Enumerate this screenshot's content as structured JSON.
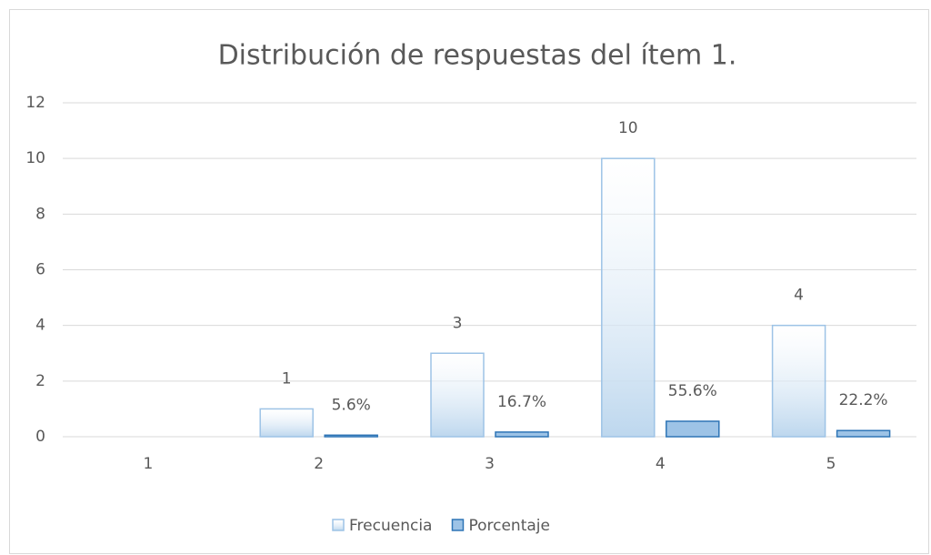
{
  "chart_data": {
    "type": "bar",
    "title": "Distribución de respuestas del ítem 1.",
    "categories": [
      "1",
      "2",
      "3",
      "4",
      "5"
    ],
    "series": [
      {
        "name": "Frecuencia",
        "color": "#bdd7ee",
        "values": [
          null,
          1,
          3,
          10,
          4
        ]
      },
      {
        "name": "Porcentaje",
        "color": "#9dc3e6",
        "values": [
          null,
          0.056,
          0.167,
          0.556,
          0.222
        ],
        "value_labels": [
          null,
          "5.6%",
          "16.7%",
          "55.6%",
          "22.2%"
        ]
      }
    ],
    "ylim": [
      0,
      12
    ],
    "yticks": [
      0,
      2,
      4,
      6,
      8,
      10,
      12
    ],
    "grid": true,
    "legend": "bottom"
  }
}
